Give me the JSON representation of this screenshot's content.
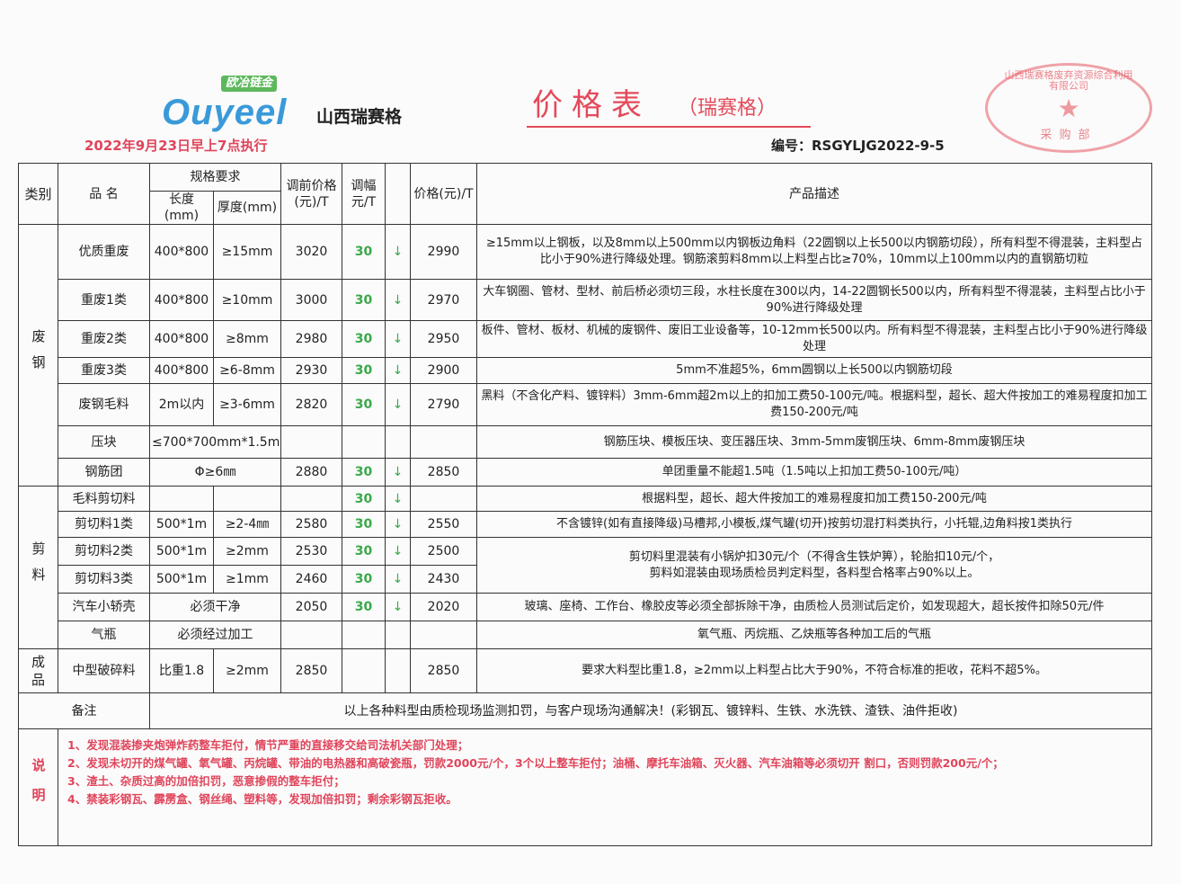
{
  "header": {
    "logo_tag": "欧冶链金",
    "logo_brand": "Ouyeel",
    "company": "山西瑞赛格",
    "exec_date": "2022年9月23日早上7点执行",
    "title": "价格表",
    "title_sub": "（瑞赛格）",
    "doc_no": "编号：RSGYLJG2022-9-5",
    "stamp_text": "山西瑞赛格废弃资源综合利用有限公司",
    "stamp_dept": "采购部"
  },
  "colors": {
    "red": "#e0455b",
    "green": "#3aa84a",
    "blue": "#3a9ad9"
  },
  "columns": {
    "category": "类别",
    "name": "品 名",
    "spec": "规格要求",
    "length": "长度(mm)",
    "thickness": "厚度(mm)",
    "prev": "调前价格(元)/T",
    "adj": "调幅元/T",
    "price": "价格(元)/T",
    "desc": "产品描述"
  },
  "groups": [
    {
      "label": "废钢",
      "rows": 7
    },
    {
      "label": "剪料",
      "rows": 6
    },
    {
      "label": "成品",
      "rows": 1
    }
  ],
  "rows": [
    {
      "name": "优质重废",
      "length": "400*800",
      "thickness": "≥15mm",
      "prev": "3020",
      "adj": "30",
      "arrow": "↓",
      "price": "2990",
      "desc": "≥15mm以上钢板，以及8mm以上500mm以内钢板边角料（22圆钢以上长500以内钢筋切段），所有料型不得混装，主料型占比小于90%进行降级处理。钢筋滚剪料8mm以上料型占比≥70%，10mm以上100mm以内的直钢筋切粒"
    },
    {
      "name": "重废1类",
      "length": "400*800",
      "thickness": "≥10mm",
      "prev": "3000",
      "adj": "30",
      "arrow": "↓",
      "price": "2970",
      "desc": "大车钢圈、管材、型材、前后桥必须切三段，水柱长度在300以内，14-22圆钢长500以内，所有料型不得混装，主料型占比小于90%进行降级处理"
    },
    {
      "name": "重废2类",
      "length": "400*800",
      "thickness": "≥8mm",
      "prev": "2980",
      "adj": "30",
      "arrow": "↓",
      "price": "2950",
      "desc": "板件、管材、板材、机械的废钢件、废旧工业设备等，10-12mm长500以内。所有料型不得混装，主料型占比小于90%进行降级处理"
    },
    {
      "name": "重废3类",
      "length": "400*800",
      "thickness": "≥6-8mm",
      "prev": "2930",
      "adj": "30",
      "arrow": "↓",
      "price": "2900",
      "desc": "5mm不准超5%，6mm圆钢以上长500以内钢筋切段"
    },
    {
      "name": "废钢毛料",
      "length": "2m以内",
      "thickness": "≥3-6mm",
      "prev": "2820",
      "adj": "30",
      "arrow": "↓",
      "price": "2790",
      "desc": "黑料（不含化产料、镀锌料）3mm-6mm超2m以上的扣加工费50-100元/吨。根据料型，超长、超大件按加工的难易程度扣加工费150-200元/吨"
    },
    {
      "name": "压块",
      "spec": "≤700*700mm*1.5m",
      "prev": "",
      "adj": "",
      "arrow": "",
      "price": "",
      "desc": "钢筋压块、模板压块、变压器压块、3mm-5mm废钢压块、6mm-8mm废钢压块"
    },
    {
      "name": "钢筋团",
      "spec": "Φ≥6㎜",
      "prev": "2880",
      "adj": "30",
      "arrow": "↓",
      "price": "2850",
      "desc": "单团重量不能超1.5吨（1.5吨以上扣加工费50-100元/吨）"
    },
    {
      "name": "毛料剪切料",
      "length": "",
      "thickness": "",
      "prev": "",
      "adj": "30",
      "arrow": "↓",
      "price": "",
      "desc": "根据料型，超长、超大件按加工的难易程度扣加工费150-200元/吨"
    },
    {
      "name": "剪切料1类",
      "length": "500*1m",
      "thickness": "≥2-4㎜",
      "prev": "2580",
      "adj": "30",
      "arrow": "↓",
      "price": "2550",
      "desc": "不含镀锌(如有直接降级)马槽邦,小模板,煤气罐(切开)按剪切混打料类执行，小托辊,边角料按1类执行"
    },
    {
      "name": "剪切料2类",
      "length": "500*1m",
      "thickness": "≥2mm",
      "prev": "2530",
      "adj": "30",
      "arrow": "↓",
      "price": "2500",
      "desc": "剪切料里混装有小锅炉扣30元/个（不得含生铁炉箅），轮胎扣10元/个，\n剪料如混装由现场质检员判定料型，各料型合格率占90%以上。",
      "desc_rowspan": 2
    },
    {
      "name": "剪切料3类",
      "length": "500*1m",
      "thickness": "≥1mm",
      "prev": "2460",
      "adj": "30",
      "arrow": "↓",
      "price": "2430",
      "desc_skip": true
    },
    {
      "name": "汽车小轿壳",
      "spec": "必须干净",
      "prev": "2050",
      "adj": "30",
      "arrow": "↓",
      "price": "2020",
      "desc": "玻璃、座椅、工作台、橡胶皮等必须全部拆除干净，由质检人员测试后定价，如发现超大，超长按件扣除50元/件"
    },
    {
      "name": "气瓶",
      "spec": "必须经过加工",
      "prev": "",
      "adj": "",
      "arrow": "",
      "price": "",
      "desc": "氧气瓶、丙烷瓶、乙炔瓶等各种加工后的气瓶"
    },
    {
      "name": "中型破碎料",
      "length": "比重1.8",
      "thickness": "≥2mm",
      "prev": "2850",
      "adj": "",
      "arrow": "",
      "price": "2850",
      "desc": "要求大料型比重1.8，≥2mm以上料型占比大于90%，不符合标准的拒收，花料不超5%。"
    }
  ],
  "remark": {
    "label": "备注",
    "text": "以上各种料型由质检现场监测扣罚，与客户现场沟通解决！(彩钢瓦、镀锌料、生铁、水洗铁、渣铁、油件拒收)"
  },
  "notes": {
    "label": "说明",
    "items": [
      "1、发现混装掺夹炮弹炸药整车拒付，情节严重的直接移交给司法机关部门处理；",
      "2、发现未切开的煤气罐、氧气罐、丙烷罐、带油的电热器和高破瓷瓶，罚款2000元/个，3个以上整车拒付；油桶、摩托车油箱、灭火器、汽车油箱等必须切开 割口，否则罚款200元/个；",
      "3、渣土、杂质过高的加倍扣罚，恶意掺假的整车拒付；",
      "4、禁装彩钢瓦、霹雳盒、钢丝绳、塑料等，发现加倍扣罚；剩余彩钢瓦拒收。"
    ]
  }
}
